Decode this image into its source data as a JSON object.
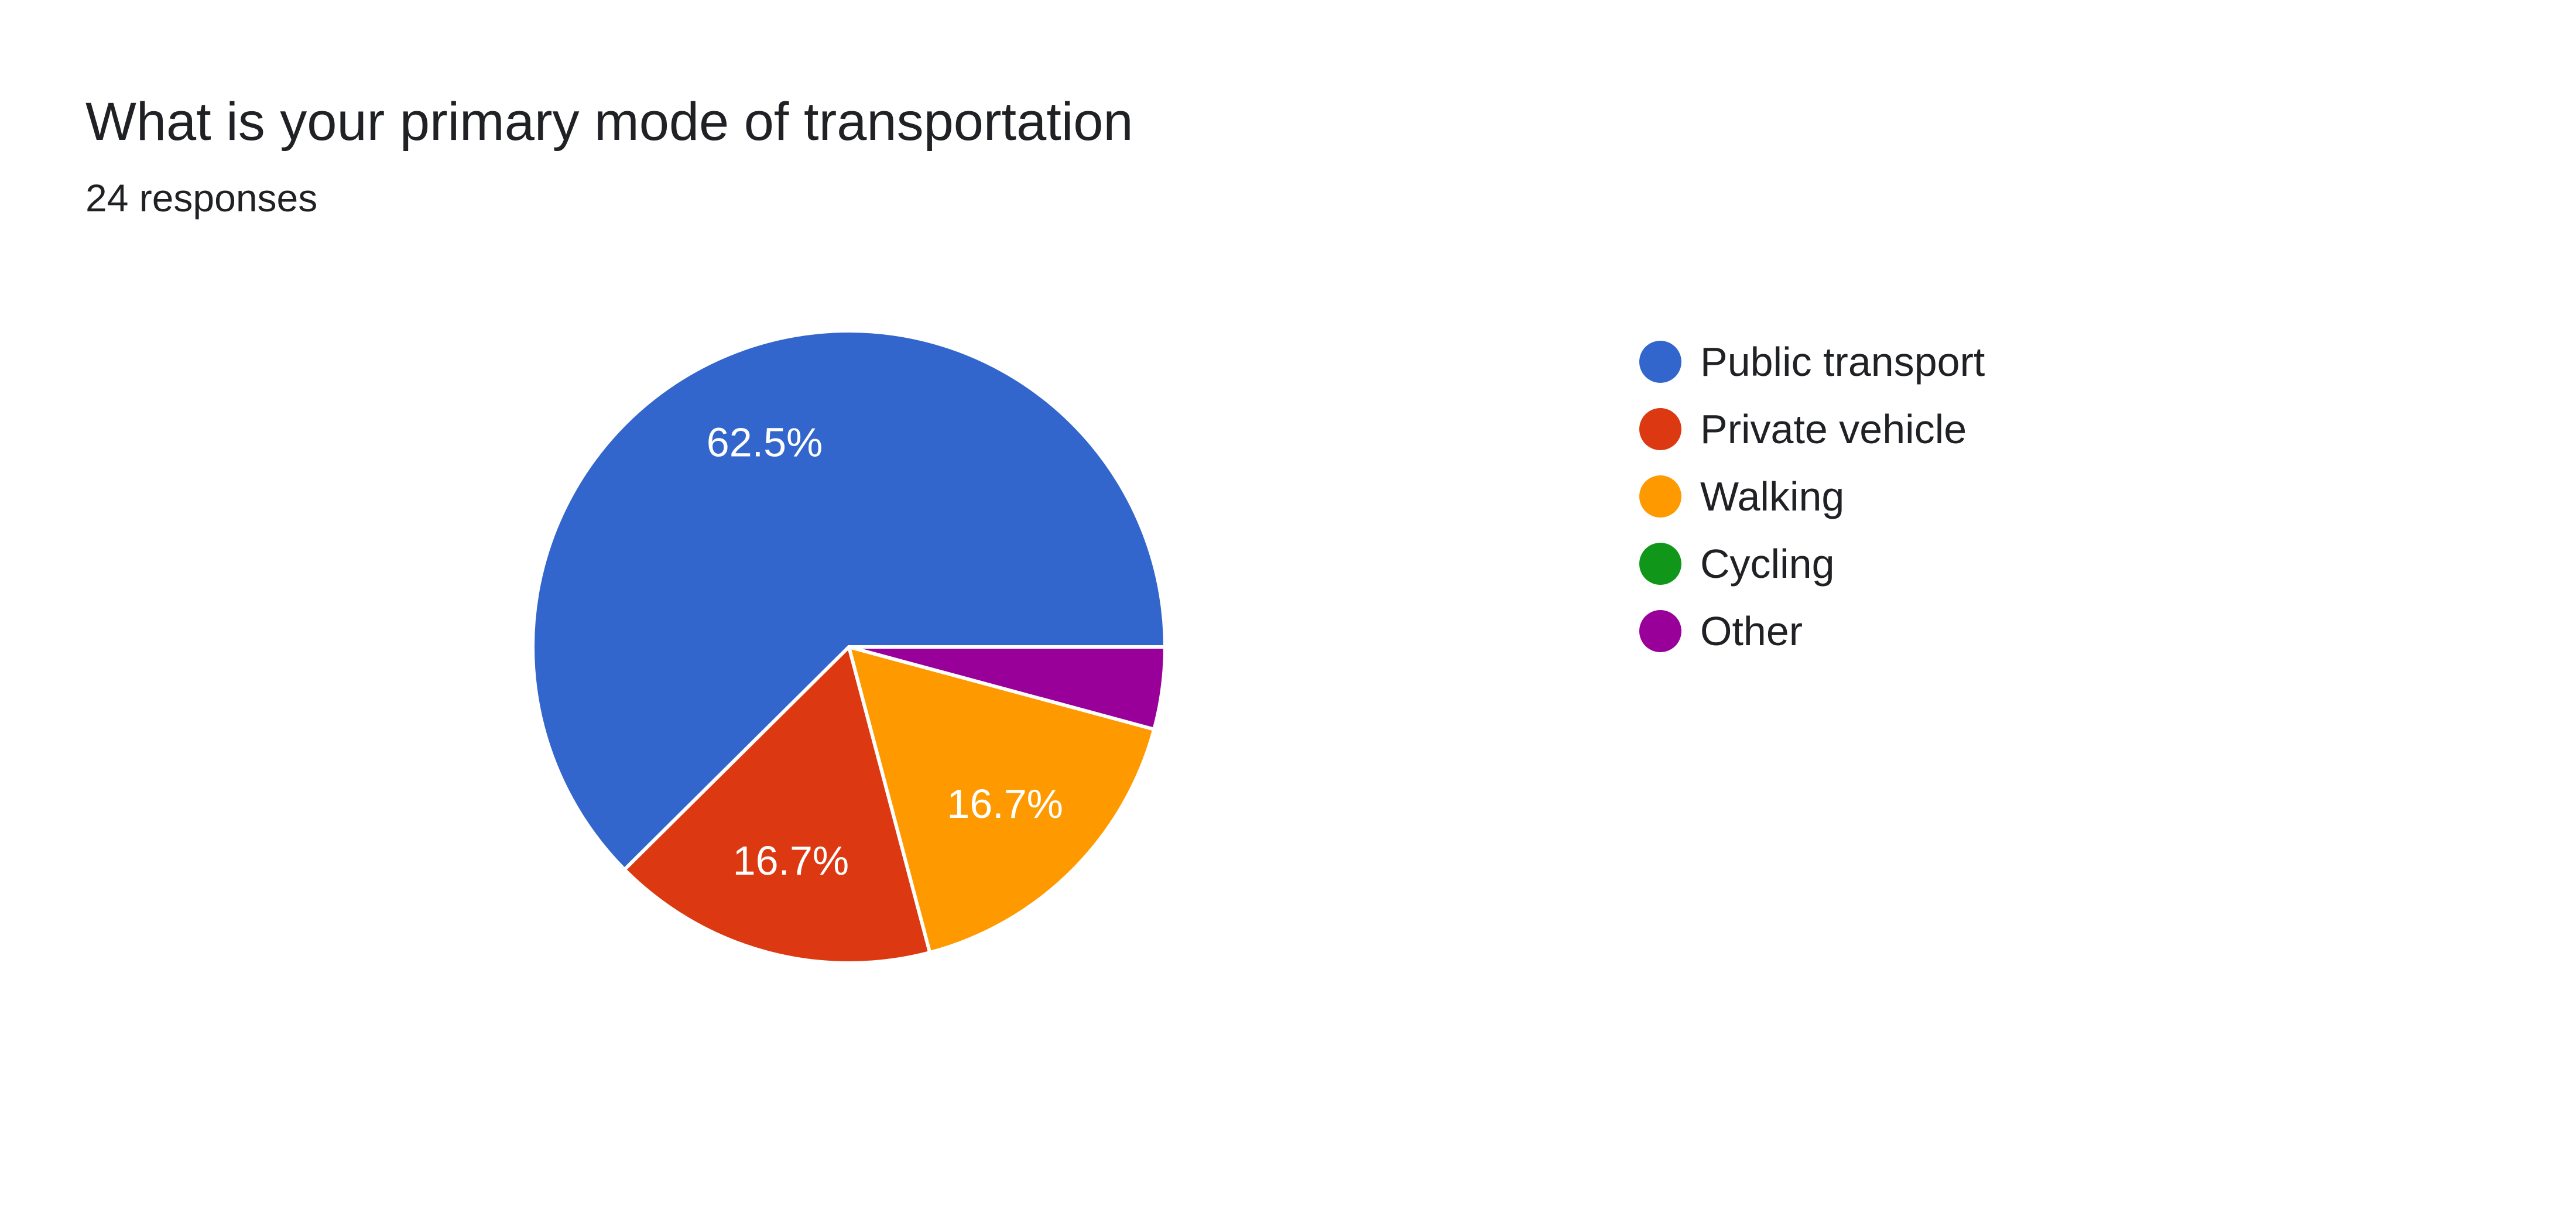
{
  "header": {
    "title": "What is your primary mode of transportation",
    "subtitle": "24 responses"
  },
  "chart_data": {
    "type": "pie",
    "categories": [
      "Public transport",
      "Private vehicle",
      "Walking",
      "Cycling",
      "Other"
    ],
    "values": [
      62.5,
      16.7,
      16.7,
      0,
      4.2
    ],
    "data_labels": [
      "62.5%",
      "16.7%",
      "16.7%",
      "",
      ""
    ],
    "colors": [
      "#3366cc",
      "#dc3912",
      "#ff9900",
      "#109618",
      "#990099"
    ],
    "legend_position": "right",
    "start": "east, counter-clockwise",
    "slice_border_color": "#ffffff"
  },
  "legend": {
    "items": [
      {
        "label": "Public transport",
        "color": "#3366cc"
      },
      {
        "label": "Private vehicle",
        "color": "#dc3912"
      },
      {
        "label": "Walking",
        "color": "#ff9900"
      },
      {
        "label": "Cycling",
        "color": "#109618"
      },
      {
        "label": "Other",
        "color": "#990099"
      }
    ]
  }
}
